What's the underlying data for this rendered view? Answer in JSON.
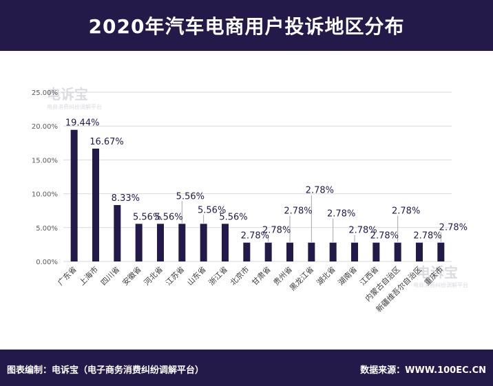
{
  "header": {
    "title": "2020年汽车电商用户投诉地区分布"
  },
  "footer": {
    "left": "图表编制：电诉宝（电子商务消费纠纷调解平台）",
    "right": "数据来源：WWW.100EC.CN"
  },
  "watermark": {
    "brand": "电诉宝",
    "sub": "电商消费纠纷调解平台"
  },
  "colors": {
    "bar": "#231a4a",
    "header_bg": "#231a4a",
    "grid": "#d9d9d9",
    "label": "#231a4a"
  },
  "chart_data": {
    "type": "bar",
    "title": "2020年汽车电商用户投诉地区分布",
    "xlabel": "",
    "ylabel": "",
    "ylim": [
      0,
      25
    ],
    "yticks": [
      "0.00%",
      "5.00%",
      "10.00%",
      "15.00%",
      "20.00%",
      "25.00%"
    ],
    "grid": true,
    "legend": "none",
    "categories": [
      "广东省",
      "上海市",
      "四川省",
      "安徽省",
      "河北省",
      "江苏省",
      "山东省",
      "浙江省",
      "北京市",
      "甘肃省",
      "贵州省",
      "黑龙江省",
      "湖北省",
      "湖南省",
      "江西省",
      "内蒙古自治区",
      "新疆维吾尔自治区",
      "重庆市"
    ],
    "values": [
      19.44,
      16.67,
      8.33,
      5.56,
      5.56,
      5.56,
      5.56,
      5.56,
      2.78,
      2.78,
      2.78,
      2.78,
      2.78,
      2.78,
      2.78,
      2.78,
      2.78,
      2.78
    ],
    "data_labels": [
      "19.44%",
      "16.67%",
      "8.33%",
      "5.56%",
      "5.56%",
      "5.56%",
      "5.56%",
      "5.56%",
      "2.78%",
      "2.78%",
      "2.78%",
      "2.78%",
      "2.78%",
      "2.78%",
      "2.78%",
      "2.78%",
      "2.78%",
      "2.78%"
    ]
  }
}
